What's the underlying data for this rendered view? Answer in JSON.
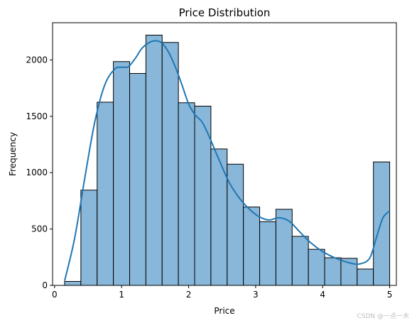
{
  "chart_data": {
    "type": "bar",
    "title": "Price Distribution",
    "xlabel": "Price",
    "ylabel": "Frequency",
    "xlim": [
      -0.03,
      5.1
    ],
    "ylim": [
      0,
      2330
    ],
    "xticks": [
      0,
      1,
      2,
      3,
      4,
      5
    ],
    "yticks": [
      0,
      500,
      1000,
      1500,
      2000
    ],
    "bin_edges": [
      0.15,
      0.3925,
      0.635,
      0.8775,
      1.12,
      1.3625,
      1.605,
      1.8475,
      2.09,
      2.3325,
      2.575,
      2.8175,
      3.06,
      3.3025,
      3.545,
      3.7875,
      4.03,
      4.2725,
      4.515,
      4.7575,
      5.0
    ],
    "values": [
      35,
      845,
      1625,
      1985,
      1880,
      2220,
      2155,
      1620,
      1590,
      1210,
      1075,
      695,
      565,
      675,
      435,
      320,
      245,
      240,
      145,
      1095
    ],
    "kde": {
      "x": [
        0.15,
        0.3,
        0.45,
        0.6,
        0.75,
        0.9,
        1.0,
        1.1,
        1.2,
        1.3,
        1.4,
        1.5,
        1.6,
        1.7,
        1.8,
        1.9,
        2.0,
        2.1,
        2.2,
        2.3,
        2.45,
        2.6,
        2.75,
        2.9,
        3.05,
        3.2,
        3.35,
        3.5,
        3.65,
        3.8,
        4.0,
        4.2,
        4.4,
        4.55,
        4.7,
        4.8,
        4.9,
        5.0
      ],
      "y": [
        40,
        420,
        950,
        1450,
        1780,
        1920,
        1935,
        1940,
        2010,
        2100,
        2150,
        2170,
        2150,
        2070,
        1940,
        1780,
        1610,
        1510,
        1450,
        1330,
        1120,
        920,
        780,
        680,
        610,
        580,
        600,
        570,
        480,
        390,
        300,
        240,
        200,
        190,
        240,
        420,
        600,
        660
      ]
    },
    "bar_color": "#89b7d9",
    "bar_edge_color": "#000000",
    "kde_color": "#1f77b4",
    "grid": false,
    "legend": "none"
  },
  "watermark": "CSDN @一点一木"
}
